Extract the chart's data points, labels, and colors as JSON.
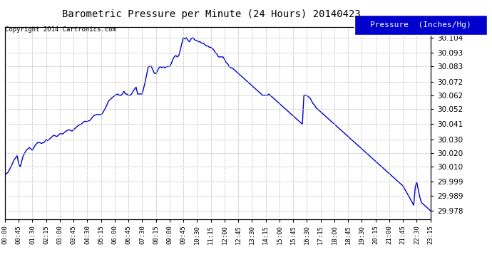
{
  "title": "Barometric Pressure per Minute (24 Hours) 20140423",
  "copyright": "Copyright 2014 Cartronics.com",
  "legend_label": "Pressure  (Inches/Hg)",
  "line_color": "#0000CC",
  "background_color": "#ffffff",
  "grid_color": "#bbbbbb",
  "yticks": [
    29.978,
    29.989,
    29.999,
    30.01,
    30.02,
    30.03,
    30.041,
    30.052,
    30.062,
    30.072,
    30.083,
    30.093,
    30.104
  ],
  "ylim": [
    29.972,
    30.112
  ],
  "xlim": [
    0,
    1395
  ],
  "xtick_positions": [
    0,
    45,
    90,
    135,
    180,
    225,
    270,
    315,
    360,
    405,
    450,
    495,
    540,
    585,
    630,
    675,
    720,
    765,
    810,
    855,
    900,
    945,
    990,
    1035,
    1080,
    1125,
    1170,
    1215,
    1260,
    1305,
    1350,
    1395
  ],
  "xtick_labels": [
    "00:00",
    "00:45",
    "01:30",
    "02:15",
    "03:00",
    "03:45",
    "04:30",
    "05:15",
    "06:00",
    "06:45",
    "07:30",
    "08:15",
    "09:00",
    "09:45",
    "10:30",
    "11:15",
    "12:00",
    "12:45",
    "13:30",
    "14:15",
    "15:00",
    "15:45",
    "16:30",
    "17:15",
    "18:00",
    "18:45",
    "19:30",
    "20:15",
    "21:00",
    "21:45",
    "22:30",
    "23:15"
  ],
  "data_points": [
    [
      0,
      30.004
    ],
    [
      10,
      30.006
    ],
    [
      20,
      30.01
    ],
    [
      30,
      30.015
    ],
    [
      40,
      30.018
    ],
    [
      45,
      30.012
    ],
    [
      50,
      30.01
    ],
    [
      60,
      30.018
    ],
    [
      70,
      30.022
    ],
    [
      80,
      30.024
    ],
    [
      90,
      30.022
    ],
    [
      100,
      30.026
    ],
    [
      110,
      30.028
    ],
    [
      120,
      30.027
    ],
    [
      130,
      30.028
    ],
    [
      135,
      30.03
    ],
    [
      140,
      30.029
    ],
    [
      150,
      30.031
    ],
    [
      160,
      30.033
    ],
    [
      170,
      30.032
    ],
    [
      180,
      30.034
    ],
    [
      190,
      30.034
    ],
    [
      200,
      30.036
    ],
    [
      210,
      30.037
    ],
    [
      220,
      30.036
    ],
    [
      225,
      30.037
    ],
    [
      230,
      30.038
    ],
    [
      240,
      30.04
    ],
    [
      250,
      30.041
    ],
    [
      260,
      30.043
    ],
    [
      270,
      30.043
    ],
    [
      280,
      30.044
    ],
    [
      290,
      30.047
    ],
    [
      300,
      30.048
    ],
    [
      310,
      30.048
    ],
    [
      315,
      30.048
    ],
    [
      320,
      30.049
    ],
    [
      330,
      30.053
    ],
    [
      340,
      30.058
    ],
    [
      350,
      30.06
    ],
    [
      360,
      30.062
    ],
    [
      370,
      30.063
    ],
    [
      375,
      30.062
    ],
    [
      380,
      30.062
    ],
    [
      385,
      30.063
    ],
    [
      390,
      30.065
    ],
    [
      395,
      30.063
    ],
    [
      400,
      30.063
    ],
    [
      405,
      30.062
    ],
    [
      410,
      30.062
    ],
    [
      415,
      30.063
    ],
    [
      420,
      30.065
    ],
    [
      430,
      30.068
    ],
    [
      435,
      30.063
    ],
    [
      440,
      30.063
    ],
    [
      445,
      30.063
    ],
    [
      450,
      30.063
    ],
    [
      460,
      30.072
    ],
    [
      470,
      30.083
    ],
    [
      475,
      30.083
    ],
    [
      480,
      30.083
    ],
    [
      490,
      30.078
    ],
    [
      495,
      30.078
    ],
    [
      500,
      30.08
    ],
    [
      505,
      30.082
    ],
    [
      510,
      30.083
    ],
    [
      515,
      30.082
    ],
    [
      520,
      30.083
    ],
    [
      525,
      30.082
    ],
    [
      530,
      30.083
    ],
    [
      535,
      30.083
    ],
    [
      540,
      30.083
    ],
    [
      545,
      30.085
    ],
    [
      550,
      30.088
    ],
    [
      555,
      30.09
    ],
    [
      560,
      30.091
    ],
    [
      565,
      30.09
    ],
    [
      570,
      30.091
    ],
    [
      575,
      30.095
    ],
    [
      580,
      30.1
    ],
    [
      585,
      30.104
    ],
    [
      590,
      30.103
    ],
    [
      595,
      30.104
    ],
    [
      600,
      30.102
    ],
    [
      605,
      30.101
    ],
    [
      610,
      30.103
    ],
    [
      615,
      30.104
    ],
    [
      620,
      30.103
    ],
    [
      625,
      30.102
    ],
    [
      630,
      30.102
    ],
    [
      635,
      30.101
    ],
    [
      640,
      30.101
    ],
    [
      645,
      30.1
    ],
    [
      650,
      30.1
    ],
    [
      655,
      30.099
    ],
    [
      660,
      30.098
    ],
    [
      665,
      30.098
    ],
    [
      670,
      30.097
    ],
    [
      675,
      30.097
    ],
    [
      680,
      30.096
    ],
    [
      685,
      30.095
    ],
    [
      690,
      30.093
    ],
    [
      695,
      30.092
    ],
    [
      700,
      30.09
    ],
    [
      705,
      30.09
    ],
    [
      710,
      30.09
    ],
    [
      715,
      30.09
    ],
    [
      720,
      30.088
    ],
    [
      725,
      30.086
    ],
    [
      730,
      30.085
    ],
    [
      735,
      30.083
    ],
    [
      740,
      30.082
    ],
    [
      745,
      30.082
    ],
    [
      750,
      30.081
    ],
    [
      755,
      30.08
    ],
    [
      760,
      30.079
    ],
    [
      765,
      30.078
    ],
    [
      770,
      30.077
    ],
    [
      775,
      30.076
    ],
    [
      780,
      30.075
    ],
    [
      785,
      30.074
    ],
    [
      790,
      30.073
    ],
    [
      795,
      30.072
    ],
    [
      800,
      30.071
    ],
    [
      805,
      30.07
    ],
    [
      810,
      30.069
    ],
    [
      815,
      30.068
    ],
    [
      820,
      30.067
    ],
    [
      825,
      30.066
    ],
    [
      830,
      30.065
    ],
    [
      835,
      30.064
    ],
    [
      840,
      30.063
    ],
    [
      845,
      30.062
    ],
    [
      855,
      30.062
    ],
    [
      860,
      30.062
    ],
    [
      865,
      30.063
    ],
    [
      870,
      30.062
    ],
    [
      875,
      30.061
    ],
    [
      880,
      30.06
    ],
    [
      885,
      30.059
    ],
    [
      890,
      30.058
    ],
    [
      895,
      30.057
    ],
    [
      900,
      30.056
    ],
    [
      905,
      30.055
    ],
    [
      910,
      30.054
    ],
    [
      915,
      30.053
    ],
    [
      920,
      30.052
    ],
    [
      925,
      30.051
    ],
    [
      930,
      30.05
    ],
    [
      935,
      30.049
    ],
    [
      940,
      30.048
    ],
    [
      945,
      30.047
    ],
    [
      950,
      30.046
    ],
    [
      955,
      30.045
    ],
    [
      960,
      30.044
    ],
    [
      965,
      30.043
    ],
    [
      970,
      30.042
    ],
    [
      975,
      30.041
    ],
    [
      980,
      30.062
    ],
    [
      985,
      30.062
    ],
    [
      990,
      30.062
    ],
    [
      995,
      30.061
    ],
    [
      1000,
      30.06
    ],
    [
      1005,
      30.058
    ],
    [
      1010,
      30.056
    ],
    [
      1015,
      30.055
    ],
    [
      1020,
      30.053
    ],
    [
      1025,
      30.052
    ],
    [
      1030,
      30.051
    ],
    [
      1035,
      30.05
    ],
    [
      1040,
      30.049
    ],
    [
      1045,
      30.048
    ],
    [
      1050,
      30.047
    ],
    [
      1055,
      30.046
    ],
    [
      1060,
      30.045
    ],
    [
      1065,
      30.044
    ],
    [
      1070,
      30.043
    ],
    [
      1075,
      30.042
    ],
    [
      1080,
      30.041
    ],
    [
      1085,
      30.04
    ],
    [
      1090,
      30.039
    ],
    [
      1095,
      30.038
    ],
    [
      1100,
      30.037
    ],
    [
      1105,
      30.036
    ],
    [
      1110,
      30.035
    ],
    [
      1115,
      30.034
    ],
    [
      1120,
      30.033
    ],
    [
      1125,
      30.032
    ],
    [
      1130,
      30.031
    ],
    [
      1135,
      30.03
    ],
    [
      1140,
      30.029
    ],
    [
      1145,
      30.028
    ],
    [
      1150,
      30.027
    ],
    [
      1155,
      30.026
    ],
    [
      1160,
      30.025
    ],
    [
      1165,
      30.024
    ],
    [
      1170,
      30.023
    ],
    [
      1175,
      30.022
    ],
    [
      1180,
      30.021
    ],
    [
      1185,
      30.02
    ],
    [
      1190,
      30.019
    ],
    [
      1195,
      30.018
    ],
    [
      1200,
      30.017
    ],
    [
      1205,
      30.016
    ],
    [
      1210,
      30.015
    ],
    [
      1215,
      30.014
    ],
    [
      1220,
      30.013
    ],
    [
      1225,
      30.012
    ],
    [
      1230,
      30.011
    ],
    [
      1235,
      30.01
    ],
    [
      1240,
      30.009
    ],
    [
      1245,
      30.008
    ],
    [
      1250,
      30.007
    ],
    [
      1255,
      30.006
    ],
    [
      1260,
      30.005
    ],
    [
      1265,
      30.004
    ],
    [
      1270,
      30.003
    ],
    [
      1275,
      30.002
    ],
    [
      1280,
      30.001
    ],
    [
      1285,
      30.0
    ],
    [
      1290,
      29.999
    ],
    [
      1295,
      29.998
    ],
    [
      1300,
      29.997
    ],
    [
      1305,
      29.996
    ],
    [
      1310,
      29.994
    ],
    [
      1315,
      29.992
    ],
    [
      1320,
      29.99
    ],
    [
      1325,
      29.988
    ],
    [
      1330,
      29.986
    ],
    [
      1335,
      29.984
    ],
    [
      1340,
      29.982
    ],
    [
      1345,
      29.995
    ],
    [
      1350,
      29.999
    ],
    [
      1355,
      29.993
    ],
    [
      1360,
      29.988
    ],
    [
      1365,
      29.984
    ],
    [
      1370,
      29.983
    ],
    [
      1375,
      29.982
    ],
    [
      1380,
      29.981
    ],
    [
      1385,
      29.98
    ],
    [
      1390,
      29.979
    ],
    [
      1395,
      29.978
    ]
  ]
}
